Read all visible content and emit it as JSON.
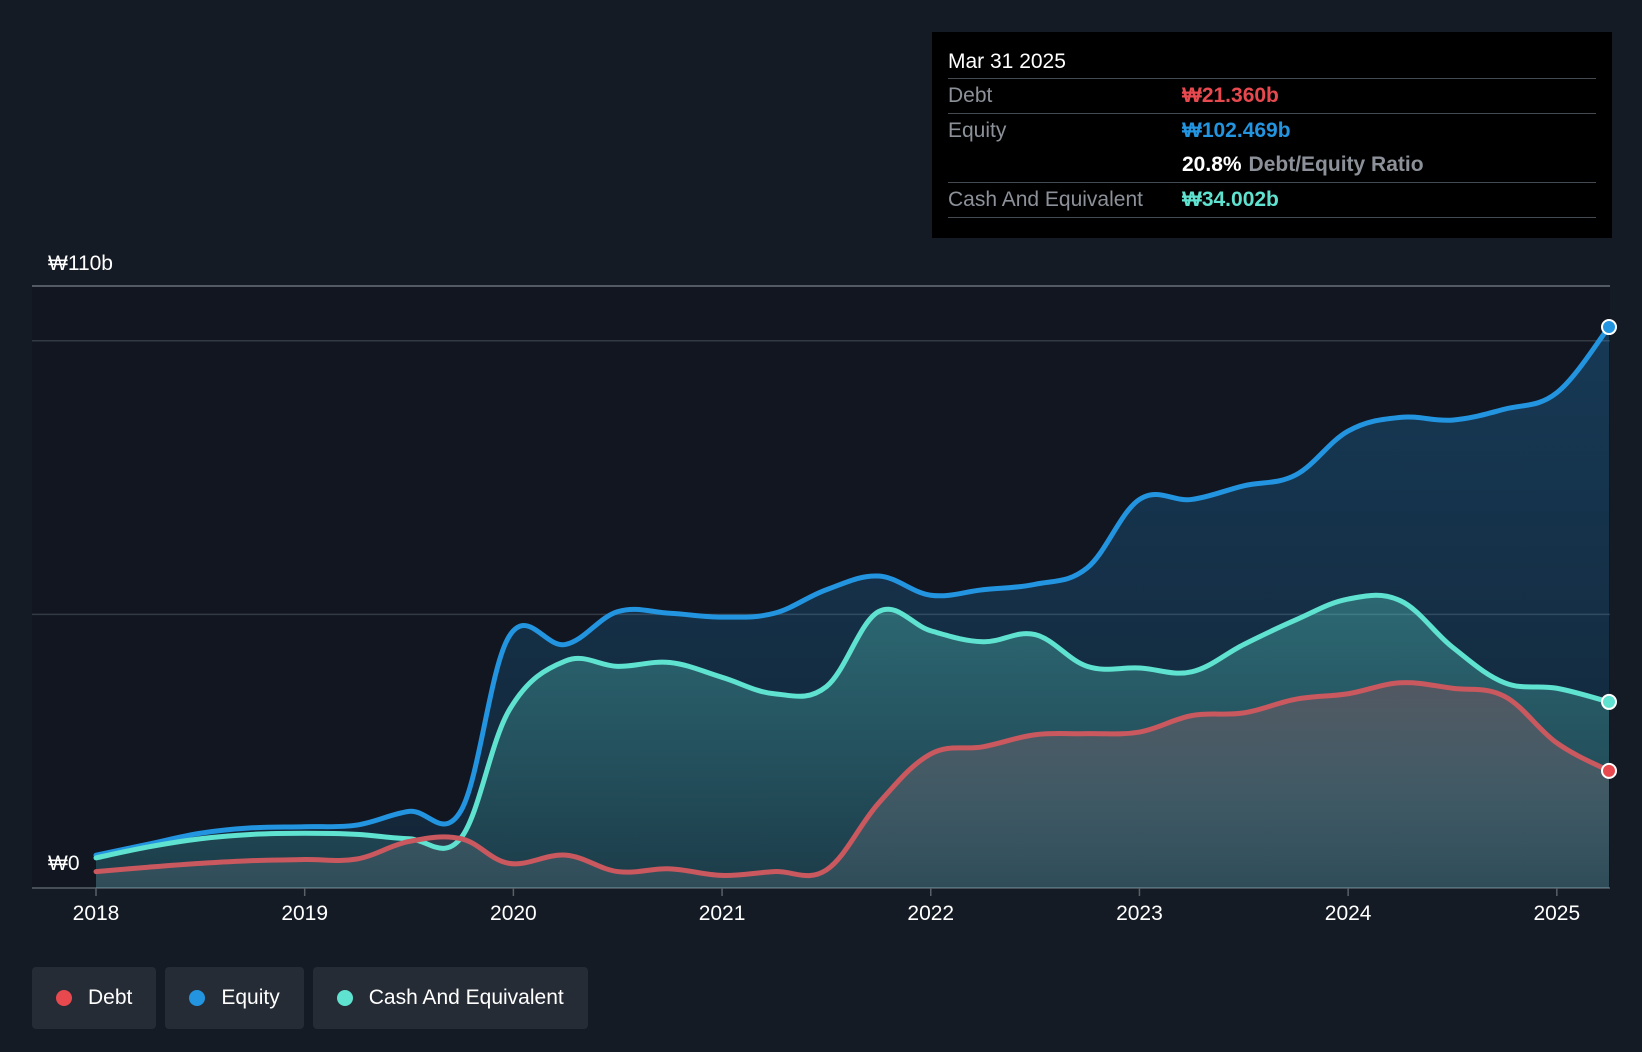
{
  "colors": {
    "background": "#151b24",
    "debt": "#e8494f",
    "equity": "#2394df",
    "cash": "#5fe2d0"
  },
  "tooltip": {
    "date": "Mar 31 2025",
    "rows": [
      {
        "label": "Debt",
        "value": "₩21.360b"
      },
      {
        "label": "Equity",
        "value": "₩102.469b"
      },
      {
        "ratio_value": "20.8%",
        "ratio_label": "Debt/Equity Ratio"
      },
      {
        "label": "Cash And Equivalent",
        "value": "₩34.002b"
      }
    ]
  },
  "legend": [
    {
      "label": "Debt",
      "color": "#e8494f"
    },
    {
      "label": "Equity",
      "color": "#2394df"
    },
    {
      "label": "Cash And Equivalent",
      "color": "#5fe2d0"
    }
  ],
  "chart_data": {
    "type": "area",
    "y_top_label": "₩110b",
    "y_zero_label": "₩0",
    "ylim": [
      0,
      110
    ],
    "y_gridlines": [
      0,
      50,
      100,
      110
    ],
    "xlim": [
      2018.0,
      2025.25
    ],
    "x_ticks": [
      2018,
      2019,
      2020,
      2021,
      2022,
      2023,
      2024,
      2025
    ],
    "x_tick_labels": [
      "2018",
      "2019",
      "2020",
      "2021",
      "2022",
      "2023",
      "2024",
      "2025"
    ],
    "grid": true,
    "legend_position": "bottom-left",
    "series": [
      {
        "name": "Equity",
        "key": "equity",
        "x": [
          2018.0,
          2018.25,
          2018.5,
          2018.75,
          2019.0,
          2019.25,
          2019.5,
          2019.75,
          2019.98,
          2020.25,
          2020.5,
          2020.75,
          2021.0,
          2021.25,
          2021.5,
          2021.75,
          2022.0,
          2022.25,
          2022.5,
          2022.75,
          2023.0,
          2023.25,
          2023.5,
          2023.75,
          2024.0,
          2024.25,
          2024.5,
          2024.75,
          2025.0,
          2025.25
        ],
        "values": [
          6,
          8,
          10,
          11,
          11.2,
          11.5,
          14,
          14.2,
          46,
          44.5,
          50.5,
          50.2,
          49.5,
          50.2,
          54.5,
          57,
          53.5,
          54.5,
          55.5,
          58.5,
          71,
          71,
          73.5,
          75.5,
          83.5,
          86,
          85.5,
          87.5,
          90.5,
          102.5
        ]
      },
      {
        "name": "Cash And Equivalent",
        "key": "cash",
        "x": [
          2018.0,
          2018.25,
          2018.5,
          2018.75,
          2019.0,
          2019.25,
          2019.5,
          2019.75,
          2019.98,
          2020.25,
          2020.5,
          2020.75,
          2021.0,
          2021.25,
          2021.5,
          2021.75,
          2022.0,
          2022.25,
          2022.5,
          2022.75,
          2023.0,
          2023.25,
          2023.5,
          2023.75,
          2024.0,
          2024.25,
          2024.5,
          2024.75,
          2025.0,
          2025.25
        ],
        "values": [
          5.5,
          7.5,
          9,
          9.8,
          10,
          9.8,
          9,
          9.2,
          32.5,
          41.5,
          40.5,
          41.2,
          38.5,
          35.5,
          36.8,
          50.5,
          47,
          45,
          46.3,
          40.5,
          40.2,
          39.5,
          44.5,
          49,
          52.8,
          52.5,
          44,
          37.5,
          36.5,
          34
        ]
      },
      {
        "name": "Debt",
        "key": "debt",
        "x": [
          2018.0,
          2018.25,
          2018.5,
          2018.75,
          2019.0,
          2019.25,
          2019.5,
          2019.75,
          2019.98,
          2020.25,
          2020.5,
          2020.75,
          2021.0,
          2021.25,
          2021.5,
          2021.75,
          2022.0,
          2022.25,
          2022.5,
          2022.75,
          2023.0,
          2023.25,
          2023.5,
          2023.75,
          2024.0,
          2024.25,
          2024.5,
          2024.75,
          2025.0,
          2025.25
        ],
        "values": [
          3,
          3.8,
          4.5,
          5,
          5.2,
          5.3,
          8.5,
          9,
          4.5,
          6,
          3,
          3.5,
          2.3,
          3,
          3.3,
          15.5,
          24.5,
          25.8,
          28,
          28.2,
          28.5,
          31.5,
          32,
          34.5,
          35.5,
          37.5,
          36.5,
          35,
          26.5,
          21.4
        ]
      }
    ]
  }
}
